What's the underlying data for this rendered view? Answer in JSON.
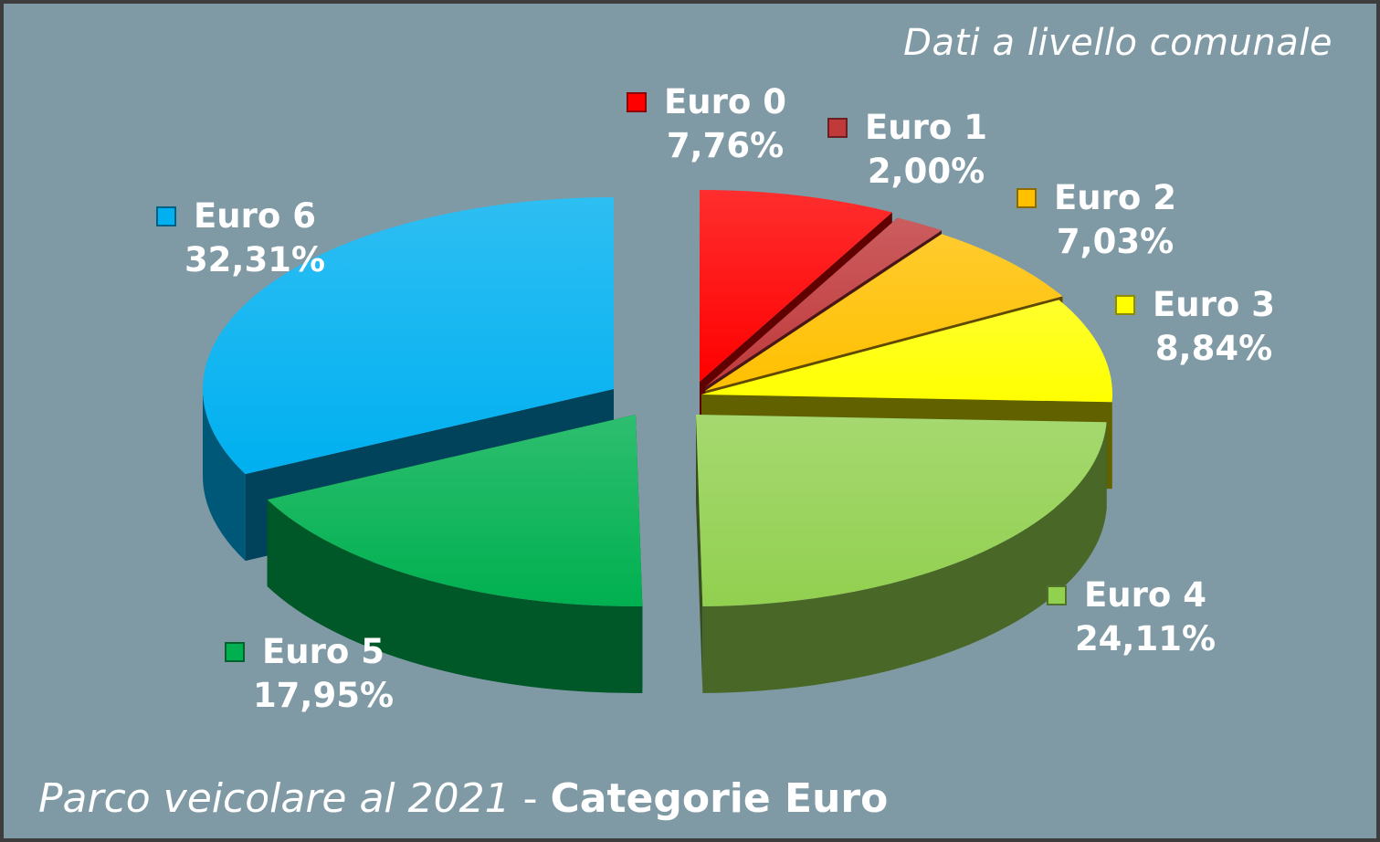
{
  "subtitle": "Dati a livello comunale",
  "footer": {
    "lead": "Parco veicolare al 2021",
    "separator": "-",
    "strong": "Categorie Euro"
  },
  "colors": {
    "background": "#7f9aa5",
    "text": "#ffffff"
  },
  "chart_data": {
    "type": "pie",
    "style": "3d-exploded",
    "legend": "inline-labels",
    "categories": [
      "Euro 0",
      "Euro 1",
      "Euro 2",
      "Euro 3",
      "Euro 4",
      "Euro 5",
      "Euro 6"
    ],
    "values": [
      7.76,
      2.0,
      7.03,
      8.84,
      24.11,
      17.95,
      32.31
    ],
    "value_labels": [
      "7,76%",
      "2,00%",
      "7,03%",
      "8,84%",
      "24,11%",
      "17,95%",
      "32,31%"
    ],
    "colors": [
      "#ff0000",
      "#c0393b",
      "#ffc000",
      "#ffff00",
      "#92d050",
      "#00b050",
      "#00b0f0"
    ],
    "unit": "%"
  }
}
